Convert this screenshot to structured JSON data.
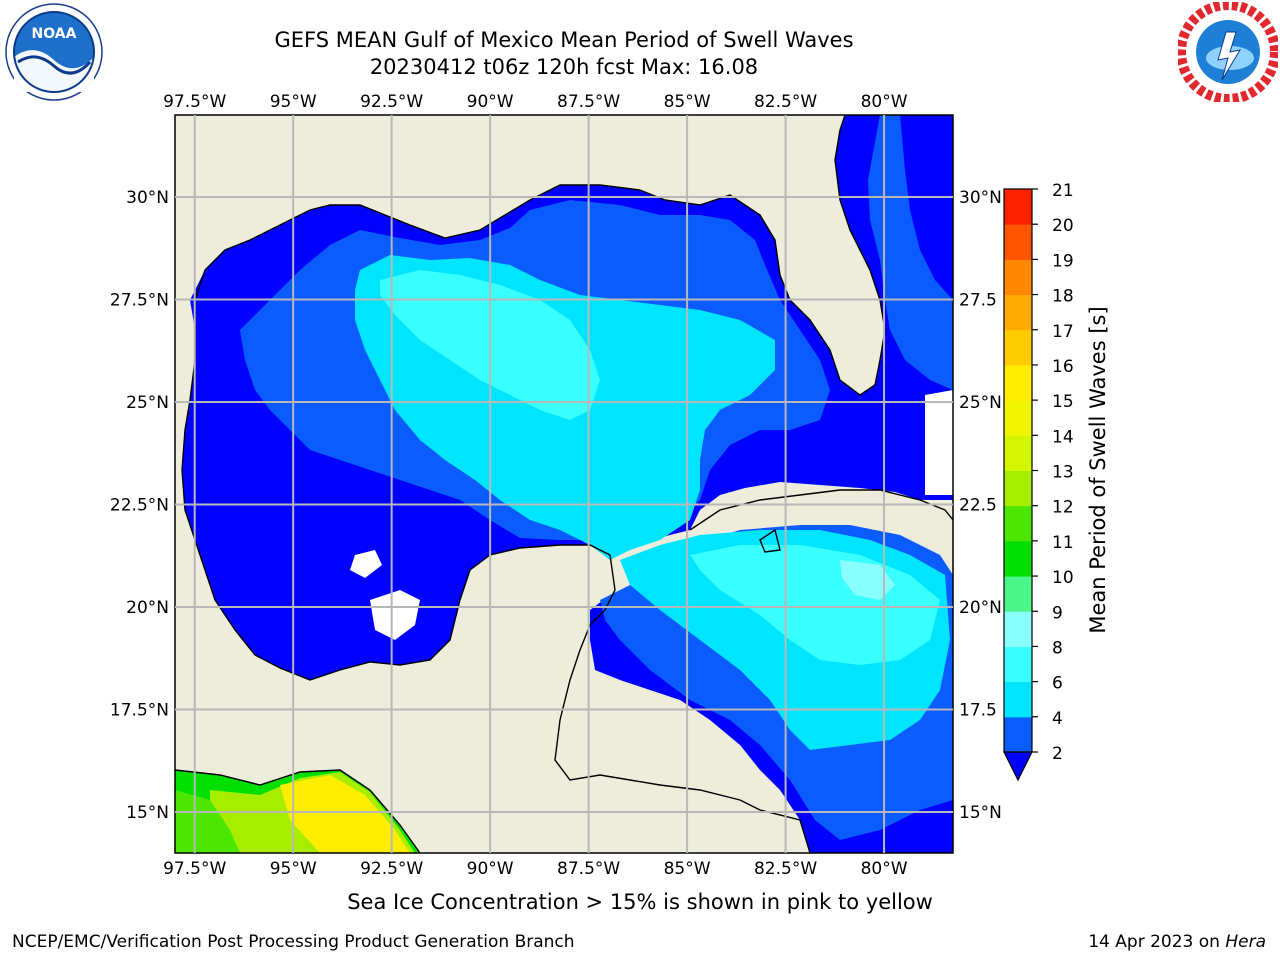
{
  "title": {
    "line1": "GEFS MEAN Gulf of Mexico Mean Period of Swell Waves",
    "line2": "20230412 t06z 120h fcst   Max: 16.08"
  },
  "logos": {
    "left": "noaa-logo",
    "right": "nws-logo"
  },
  "map": {
    "lon_ticks": [
      "97.5°W",
      "95°W",
      "92.5°W",
      "90°W",
      "87.5°W",
      "85°W",
      "82.5°W",
      "80°W"
    ],
    "lon_values": [
      -97.5,
      -95,
      -92.5,
      -90,
      -87.5,
      -85,
      -82.5,
      -80
    ],
    "lat_ticks": [
      "30°N",
      "27.5°N",
      "25°N",
      "22.5°N",
      "20°N",
      "17.5°N",
      "15°N"
    ],
    "lat_values": [
      30,
      27.5,
      25,
      22.5,
      20,
      17.5,
      15
    ],
    "right_lat_ticks": [
      "30°N",
      "27.5",
      "25°N",
      "22.5",
      "20°N",
      "17.5",
      "15°N"
    ],
    "extent": {
      "lon": [
        -98,
        -78.25
      ],
      "lat": [
        14,
        32
      ]
    },
    "colors": {
      "land": "#eeeddc",
      "nodata": "#ffffff",
      "grid": "#b8b8b8"
    }
  },
  "colorbar": {
    "label": "Mean Period of Swell Waves [s]",
    "levels": [
      "2",
      "4",
      "6",
      "8",
      "9",
      "10",
      "11",
      "12",
      "13",
      "14",
      "15",
      "16",
      "17",
      "18",
      "19",
      "20",
      "21"
    ],
    "colors": [
      "#0a5cff",
      "#00e5ff",
      "#39ffff",
      "#8affff",
      "#4cf58a",
      "#00e000",
      "#4ce600",
      "#a6ed00",
      "#d4f500",
      "#f0f500",
      "#ffee00",
      "#ffcc00",
      "#ffaa00",
      "#ff8800",
      "#ff5500",
      "#ff2200"
    ],
    "under_color": "#0000ff"
  },
  "subtitle": "Sea Ice Concentration > 15% is shown in pink to yellow",
  "footer": {
    "left": "NCEP/EMC/Verification Post Processing Product Generation Branch",
    "right_date": "14 Apr 2023 on ",
    "right_host": "Hera"
  }
}
